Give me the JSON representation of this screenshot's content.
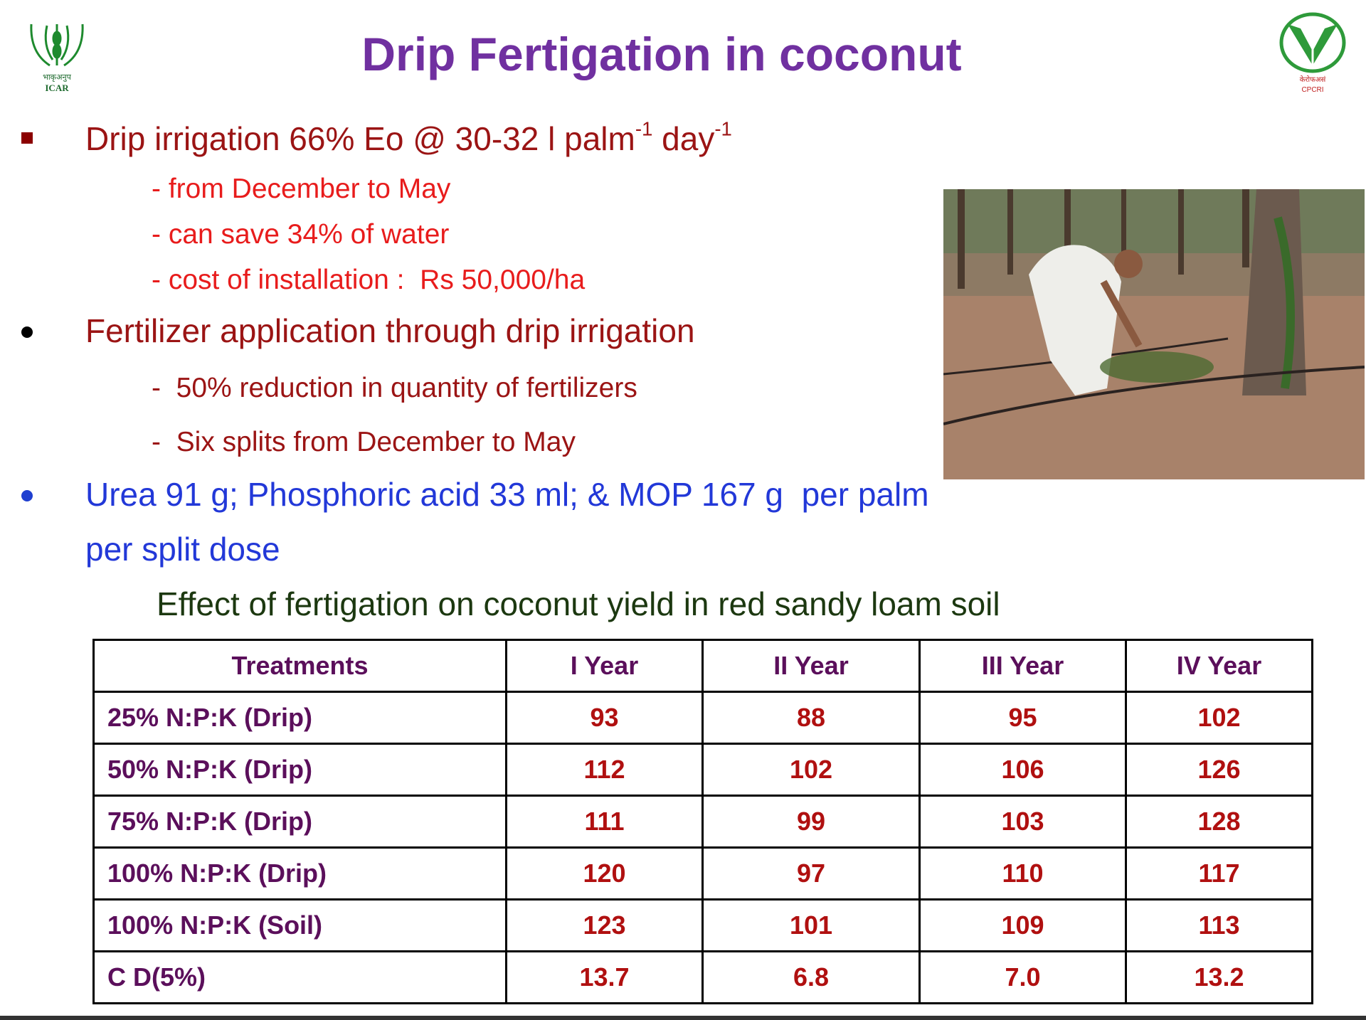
{
  "header": {
    "title": "Drip Fertigation in coconut",
    "logo_left": {
      "script": "भाकृअनुप",
      "label": "ICAR"
    },
    "logo_right": {
      "script": "केरोफअसं",
      "label": "CPCRI"
    }
  },
  "bullets": [
    {
      "segments": [
        "Drip irrigation 66% Eo @ 30-32 l palm",
        "-1",
        " day",
        "-1"
      ],
      "subitems": [
        "- from December to May",
        "- can save 34% of water",
        "- cost of installation :  Rs 50,000/ha"
      ]
    },
    {
      "segments": [
        "Fertilizer application through drip irrigation"
      ],
      "subitems": [
        "-  50% reduction in quantity of fertilizers",
        "-  Six splits from December to May"
      ]
    },
    {
      "lines": [
        "Urea 91 g; Phosphoric acid 33 ml; & MOP 167 g  per palm",
        "per split dose"
      ]
    }
  ],
  "table": {
    "caption": "Effect of fertigation on coconut yield in red sandy loam soil",
    "columns": [
      "Treatments",
      "I Year",
      "II Year",
      "III Year",
      "IV Year"
    ],
    "rows": [
      [
        "25% N:P:K (Drip)",
        "93",
        "88",
        "95",
        "102"
      ],
      [
        "50% N:P:K (Drip)",
        "112",
        "102",
        "106",
        "126"
      ],
      [
        "75% N:P:K (Drip)",
        "111",
        "99",
        "103",
        "128"
      ],
      [
        "100% N:P:K (Drip)",
        "120",
        "97",
        "110",
        "117"
      ],
      [
        "100% N:P:K (Soil)",
        "123",
        "101",
        "109",
        "113"
      ],
      [
        "C D(5%)",
        "13.7",
        "6.8",
        "7.0",
        "13.2"
      ]
    ]
  }
}
